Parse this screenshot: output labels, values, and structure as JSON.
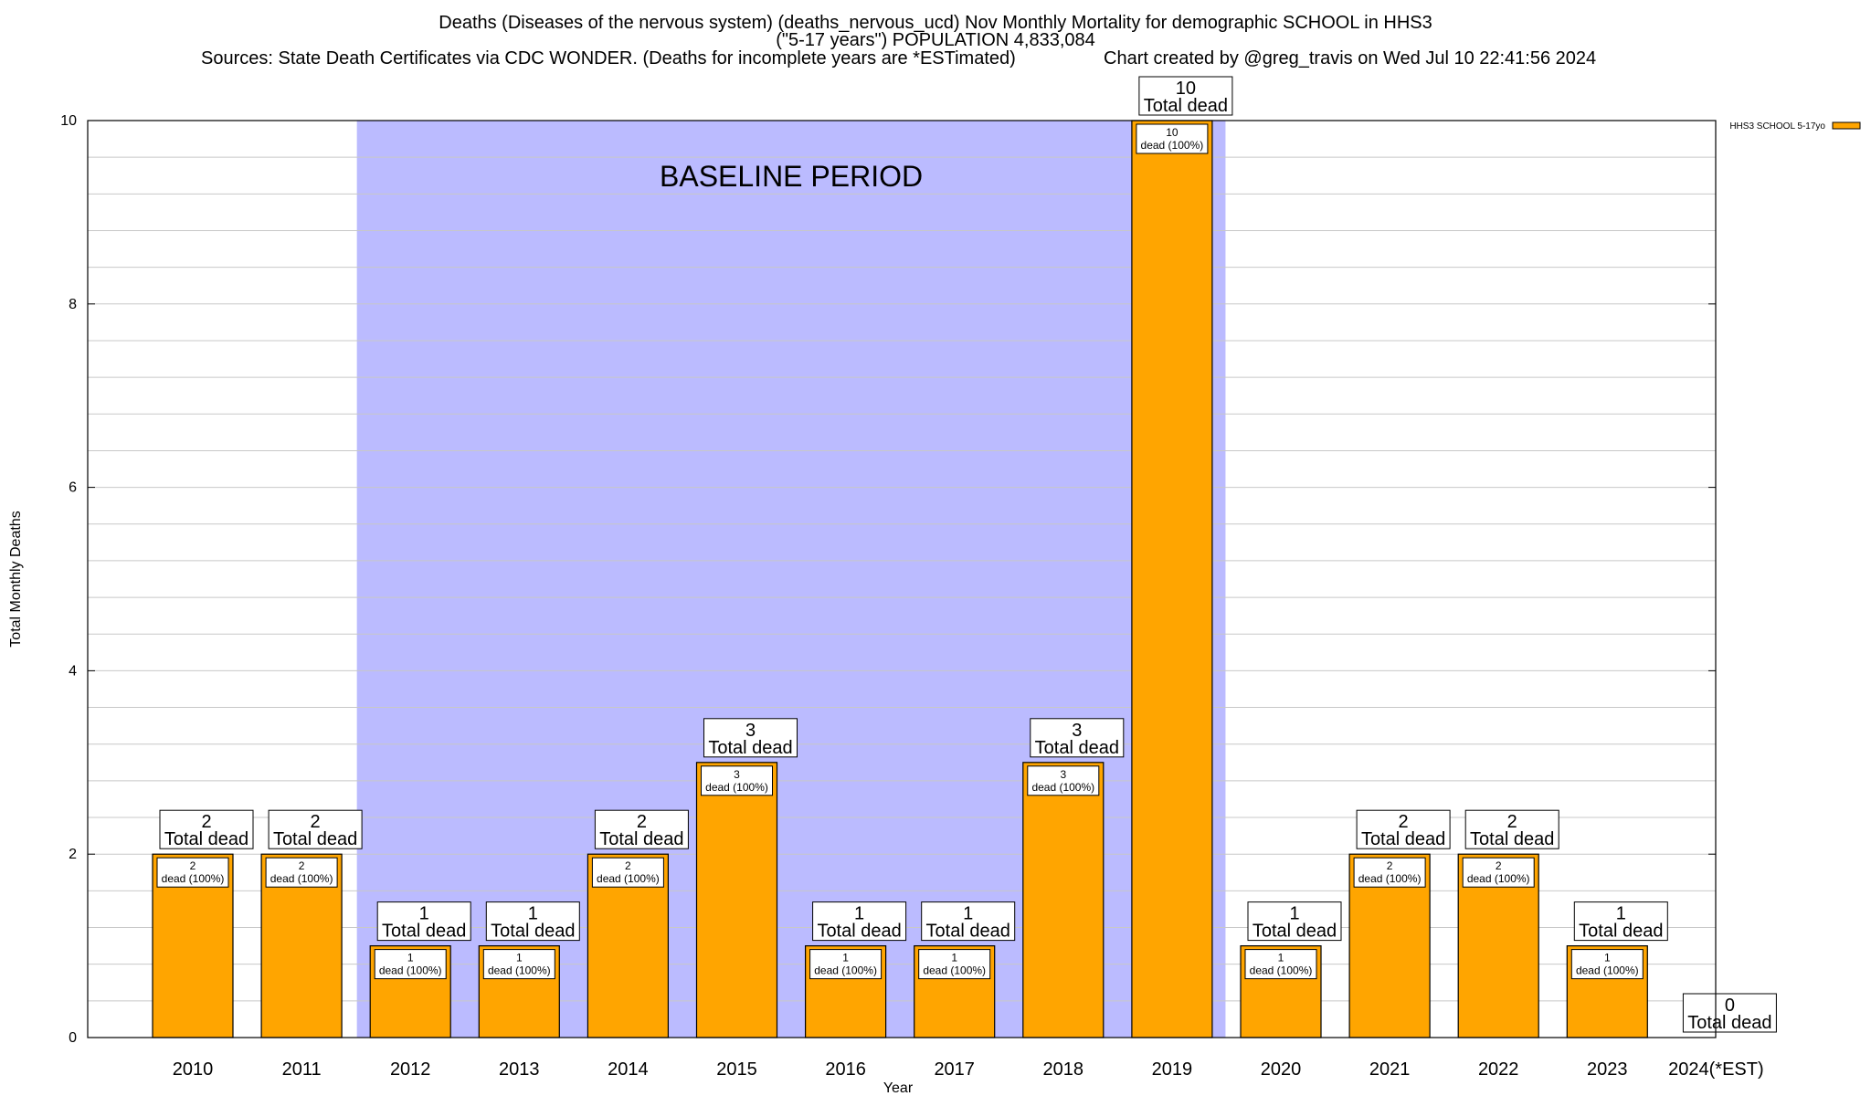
{
  "header": {
    "title_line1": "Deaths (Diseases of the nervous system) (deaths_nervous_ucd) Nov Monthly Mortality for demographic SCHOOL in HHS3",
    "title_line2": "(\"5-17 years\") POPULATION 4,833,084",
    "sources": "Sources: State Death Certificates via CDC WONDER. (Deaths for incomplete years are *ESTimated)",
    "credit": "Chart created by @greg_travis on Wed Jul 10 22:41:56 2024"
  },
  "chart_data": {
    "type": "bar",
    "title": "Deaths (Diseases of the nervous system) (deaths_nervous_ucd) Nov Monthly Mortality for demographic SCHOOL in HHS3",
    "xlabel": "Year",
    "ylabel": "Total Monthly Deaths",
    "ylim": [
      0,
      10
    ],
    "yticks": [
      0,
      2,
      4,
      6,
      8,
      10
    ],
    "categories": [
      "2010",
      "2011",
      "2012",
      "2013",
      "2014",
      "2015",
      "2016",
      "2017",
      "2018",
      "2019",
      "2020",
      "2021",
      "2022",
      "2023",
      "2024(*EST)"
    ],
    "series": [
      {
        "name": "HHS3 SCHOOL 5-17yo",
        "color": "#FFA500",
        "values": [
          2,
          2,
          1,
          1,
          2,
          3,
          1,
          1,
          3,
          10,
          1,
          2,
          2,
          1,
          0
        ]
      }
    ],
    "total_label_suffix": "Total dead",
    "bar_label_suffix": "dead (100%)",
    "baseline": {
      "label": "BASELINE PERIOD",
      "from": "2012",
      "to": "2019",
      "color": "#BBBBFF"
    },
    "legend": {
      "position": "top-right"
    },
    "grid": true
  }
}
